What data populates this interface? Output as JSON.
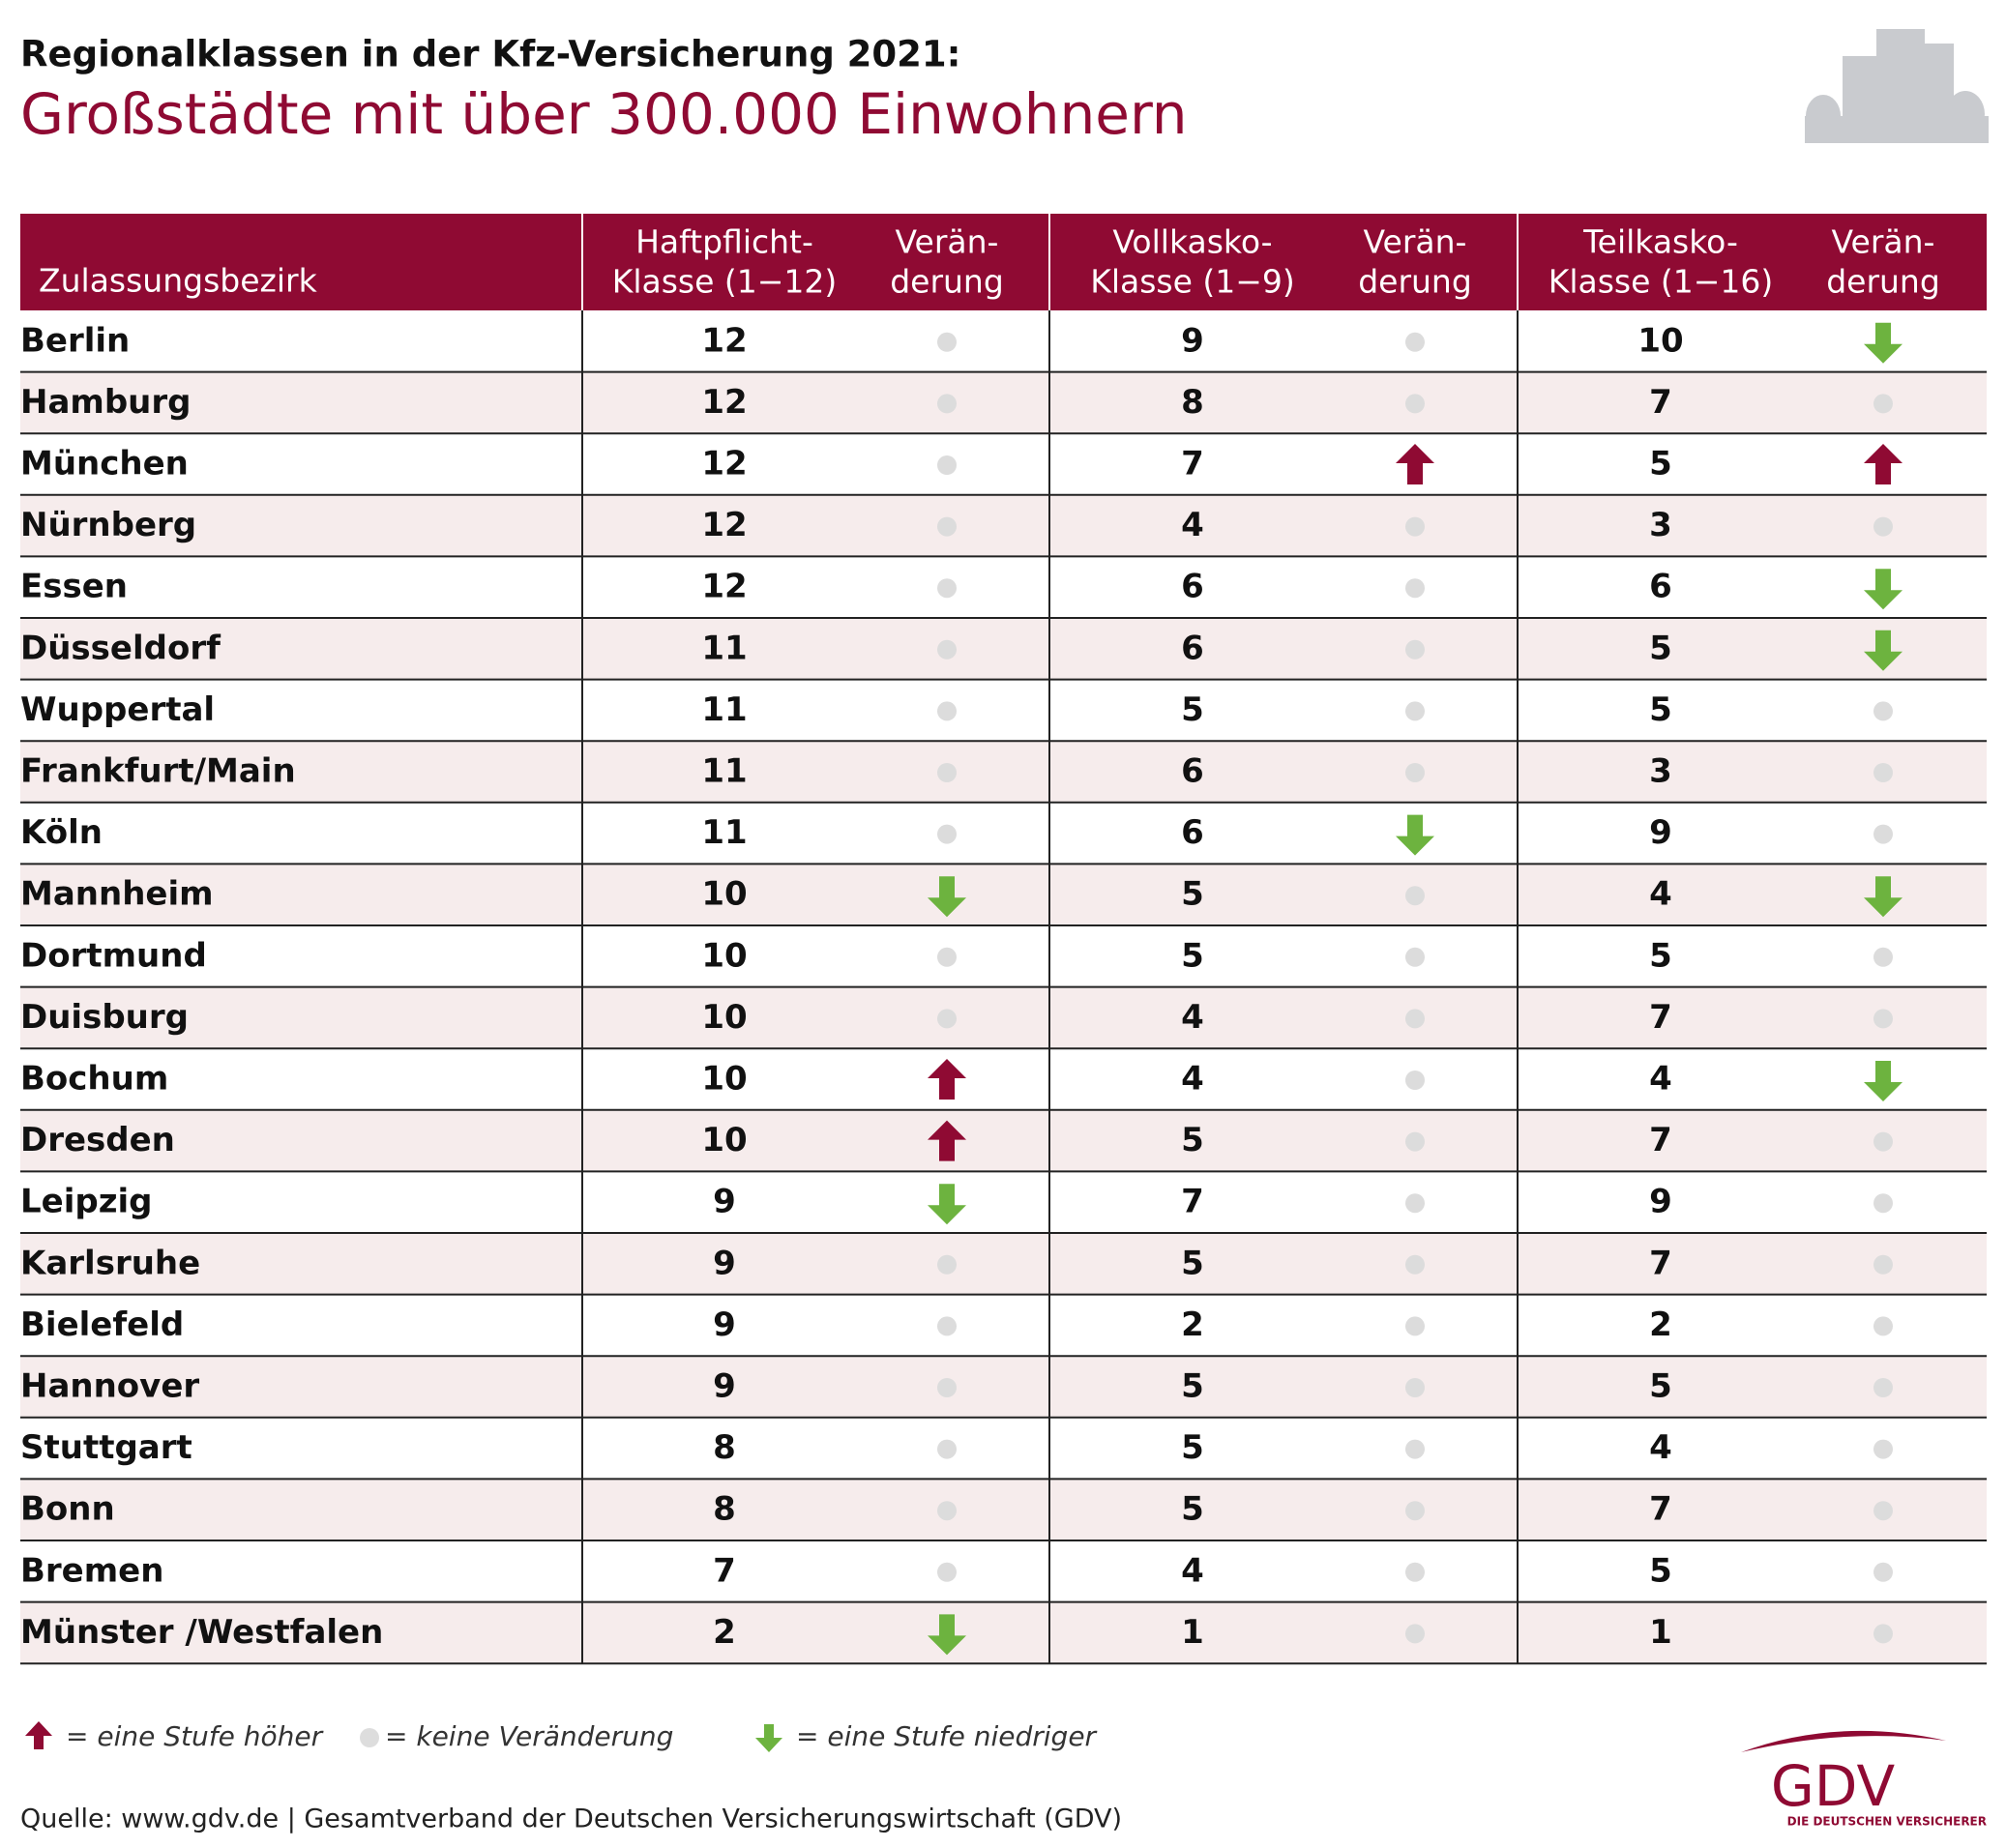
{
  "header": {
    "title": "Regionalklassen in der Kfz-Versicherung 2021:",
    "subtitle": "Großstädte mit über 300.000 Einwohnern"
  },
  "table": {
    "columns": [
      [
        "Zulassungsbezirk"
      ],
      [
        "Haftpflicht-",
        "Klasse (1−12)"
      ],
      [
        "Verän-",
        "derung"
      ],
      [
        "Vollkasko-",
        "Klasse (1−9)"
      ],
      [
        "Verän-",
        "derung"
      ],
      [
        "Teilkasko-",
        "Klasse (1−16)"
      ],
      [
        "Verän-",
        "derung"
      ]
    ],
    "rows": [
      [
        "Berlin",
        12,
        "none",
        9,
        "none",
        10,
        "down"
      ],
      [
        "Hamburg",
        12,
        "none",
        8,
        "none",
        7,
        "none"
      ],
      [
        "München",
        12,
        "none",
        7,
        "up",
        5,
        "up"
      ],
      [
        "Nürnberg",
        12,
        "none",
        4,
        "none",
        3,
        "none"
      ],
      [
        "Essen",
        12,
        "none",
        6,
        "none",
        6,
        "down"
      ],
      [
        "Düsseldorf",
        11,
        "none",
        6,
        "none",
        5,
        "down"
      ],
      [
        "Wuppertal",
        11,
        "none",
        5,
        "none",
        5,
        "none"
      ],
      [
        "Frankfurt/Main",
        11,
        "none",
        6,
        "none",
        3,
        "none"
      ],
      [
        "Köln",
        11,
        "none",
        6,
        "down",
        9,
        "none"
      ],
      [
        "Mannheim",
        10,
        "down",
        5,
        "none",
        4,
        "down"
      ],
      [
        "Dortmund",
        10,
        "none",
        5,
        "none",
        5,
        "none"
      ],
      [
        "Duisburg",
        10,
        "none",
        4,
        "none",
        7,
        "none"
      ],
      [
        "Bochum",
        10,
        "up",
        4,
        "none",
        4,
        "down"
      ],
      [
        "Dresden",
        10,
        "up",
        5,
        "none",
        7,
        "none"
      ],
      [
        "Leipzig",
        9,
        "down",
        7,
        "none",
        9,
        "none"
      ],
      [
        "Karlsruhe",
        9,
        "none",
        5,
        "none",
        7,
        "none"
      ],
      [
        "Bielefeld",
        9,
        "none",
        2,
        "none",
        2,
        "none"
      ],
      [
        "Hannover",
        9,
        "none",
        5,
        "none",
        5,
        "none"
      ],
      [
        "Stuttgart",
        8,
        "none",
        5,
        "none",
        4,
        "none"
      ],
      [
        "Bonn",
        8,
        "none",
        5,
        "none",
        7,
        "none"
      ],
      [
        "Bremen",
        7,
        "none",
        4,
        "none",
        5,
        "none"
      ],
      [
        "Münster /Westfalen",
        2,
        "down",
        1,
        "none",
        1,
        "none"
      ]
    ]
  },
  "legend": {
    "up": "= eine Stufe höher",
    "none": "= keine Veränderung",
    "down": "= eine Stufe niedriger"
  },
  "source": "Quelle: www.gdv.de | Gesamtverband der Deutschen Versicherungswirtschaft (GDV)",
  "logo": {
    "name": "GDV",
    "tagline": "DIE DEUTSCHEN VERSICHERER"
  }
}
